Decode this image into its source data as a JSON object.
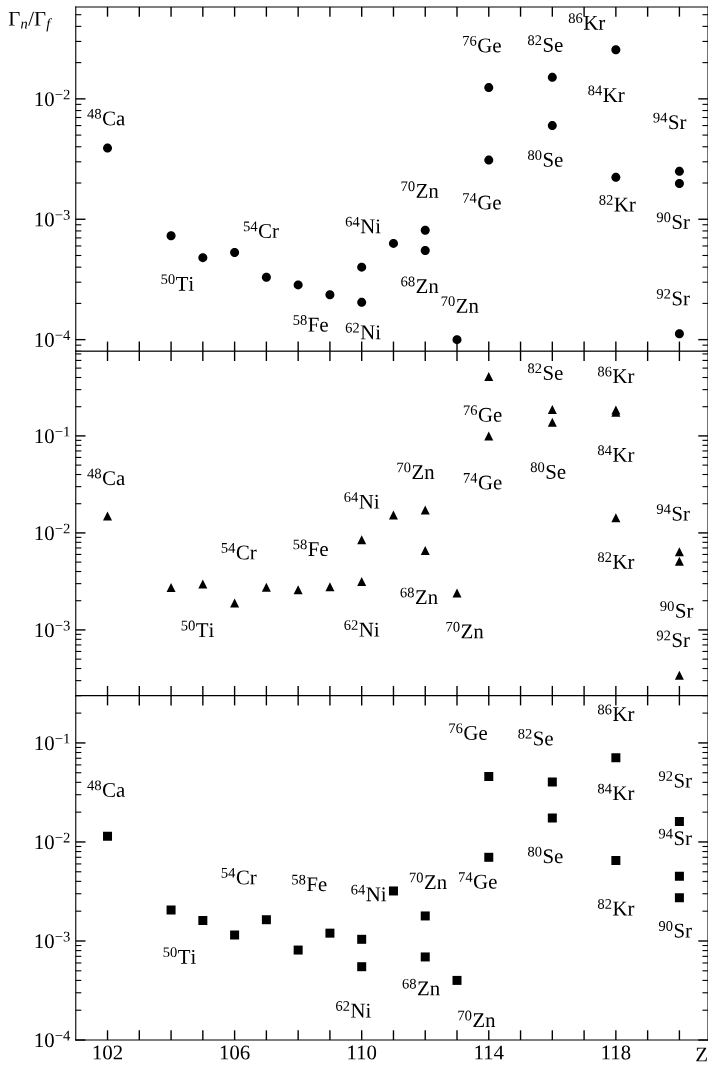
{
  "chart_data": [
    {
      "type": "scatter",
      "ylabel": "Γ$_{n}$/Γ$_{f}$",
      "log": "y",
      "marker": "circle",
      "tick_labels": "y",
      "xlim": [
        101,
        120.9
      ],
      "xticks": [
        {
          "value": 102,
          "label": null
        },
        {
          "value": 103,
          "label": null
        },
        {
          "value": 104,
          "label": null
        },
        {
          "value": 105,
          "label": null
        },
        {
          "value": 106,
          "label": null
        },
        {
          "value": 107,
          "label": null
        },
        {
          "value": 108,
          "label": null
        },
        {
          "value": 109,
          "label": null
        },
        {
          "value": 110,
          "label": null
        },
        {
          "value": 111,
          "label": null
        },
        {
          "value": 112,
          "label": null
        },
        {
          "value": 113,
          "label": null
        },
        {
          "value": 114,
          "label": null
        },
        {
          "value": 115,
          "label": null
        },
        {
          "value": 116,
          "label": null
        },
        {
          "value": 117,
          "label": null
        },
        {
          "value": 118,
          "label": null
        },
        {
          "value": 119,
          "label": null
        },
        {
          "value": 120,
          "label": null
        }
      ],
      "ylim": [
        8e-05,
        0.058
      ],
      "yticks": [
        {
          "value": 0.0001,
          "label": "10$^{−4}$"
        },
        {
          "value": 0.001,
          "label": "10$^{−3}$"
        },
        {
          "value": 0.01,
          "label": "10$^{−2}$"
        }
      ],
      "series": [
        {
          "color": "#000000",
          "x": [
            102,
            104,
            105,
            106,
            107,
            108,
            109,
            110,
            110,
            111,
            112,
            112,
            113,
            114,
            114,
            116,
            116,
            118,
            118,
            120,
            120,
            120
          ],
          "values": [
            0.0039,
            0.00073,
            0.00048,
            0.00053,
            0.00033,
            0.000285,
            0.000236,
            0.0004,
            0.000204,
            0.00063,
            0.00081,
            0.00055,
            0.0001,
            0.0124,
            0.0031,
            0.0151,
            0.006,
            0.0256,
            0.00223,
            0.0025,
            0.00198,
            0.000112
          ]
        }
      ],
      "annotations": [
        {
          "text": "$^{48}$Ca",
          "x": 102,
          "y": 0.0039
        },
        {
          "text": "$^{50}$Ti",
          "x": 104,
          "y": 0.00073
        },
        {
          "text": "$^{54}$Cr",
          "x": 106,
          "y": 0.00053
        },
        {
          "text": "$^{58}$Fe",
          "x": 108,
          "y": 0.000285
        },
        {
          "text": "$^{62}$Ni",
          "x": 110,
          "y": 0.000204
        },
        {
          "text": "$^{64}$Ni",
          "x": 110,
          "y": 0.0004
        },
        {
          "text": "$^{70}$Zn",
          "x": 112,
          "y": 0.00081
        },
        {
          "text": "$^{68}$Zn",
          "x": 112,
          "y": 0.00055
        },
        {
          "text": "$^{70}$Zn",
          "x": 113,
          "y": 0.0001
        },
        {
          "text": "$^{76}$Ge",
          "x": 114,
          "y": 0.0124
        },
        {
          "text": "$^{74}$Ge",
          "x": 114,
          "y": 0.0031
        },
        {
          "text": "$^{82}$Se",
          "x": 116,
          "y": 0.0151
        },
        {
          "text": "$^{80}$Se",
          "x": 116,
          "y": 0.006
        },
        {
          "text": "$^{86}$Kr",
          "x": 118,
          "y": 0.0256
        },
        {
          "text": "$^{84}$Kr",
          "x": 118,
          "y": 0.0256
        },
        {
          "text": "$^{82}$Kr",
          "x": 118,
          "y": 0.00223
        },
        {
          "text": "$^{94}$Sr",
          "x": 120,
          "y": 0.0025
        },
        {
          "text": "$^{90}$Sr",
          "x": 120,
          "y": 0.00198
        },
        {
          "text": "$^{92}$Sr",
          "x": 120,
          "y": 0.000112
        }
      ]
    },
    {
      "type": "scatter",
      "log": "y",
      "marker": "triangle",
      "tick_labels": "y",
      "xlim": [
        101,
        120.9
      ],
      "xticks": [
        {
          "value": 102,
          "label": null
        },
        {
          "value": 103,
          "label": null
        },
        {
          "value": 104,
          "label": null
        },
        {
          "value": 105,
          "label": null
        },
        {
          "value": 106,
          "label": null
        },
        {
          "value": 107,
          "label": null
        },
        {
          "value": 108,
          "label": null
        },
        {
          "value": 109,
          "label": null
        },
        {
          "value": 110,
          "label": null
        },
        {
          "value": 111,
          "label": null
        },
        {
          "value": 112,
          "label": null
        },
        {
          "value": 113,
          "label": null
        },
        {
          "value": 114,
          "label": null
        },
        {
          "value": 115,
          "label": null
        },
        {
          "value": 116,
          "label": null
        },
        {
          "value": 117,
          "label": null
        },
        {
          "value": 118,
          "label": null
        },
        {
          "value": 119,
          "label": null
        },
        {
          "value": 120,
          "label": null
        }
      ],
      "ylim": [
        0.00021,
        0.745
      ],
      "yticks": [
        {
          "value": 0.001,
          "label": "10$^{−3}$"
        },
        {
          "value": 0.01,
          "label": "10$^{−2}$"
        },
        {
          "value": 0.1,
          "label": "10$^{−1}$"
        }
      ],
      "series": [
        {
          "color": "#000000",
          "x": [
            102,
            104,
            105,
            106,
            107,
            108,
            109,
            110,
            110,
            111,
            112,
            112,
            113,
            114,
            114,
            116,
            116,
            118,
            118,
            118,
            120,
            120,
            120
          ],
          "values": [
            0.0149,
            0.00273,
            0.00298,
            0.00189,
            0.00276,
            0.00259,
            0.00279,
            0.0085,
            0.00315,
            0.0153,
            0.0172,
            0.0066,
            0.0024,
            0.41,
            0.1,
            0.187,
            0.138,
            0.185,
            0.175,
            0.0143,
            0.0064,
            0.0051,
            0.00034
          ]
        }
      ],
      "annotations": [
        {
          "text": "$^{48}$Ca",
          "x": 102,
          "y": 0.0149
        },
        {
          "text": "$^{50}$Ti",
          "x": 104,
          "y": 0.00273
        },
        {
          "text": "$^{54}$Cr",
          "x": 106,
          "y": 0.00189
        },
        {
          "text": "$^{58}$Fe",
          "x": 108,
          "y": 0.00259
        },
        {
          "text": "$^{64}$Ni",
          "x": 110,
          "y": 0.0085
        },
        {
          "text": "$^{62}$Ni",
          "x": 110,
          "y": 0.00315
        },
        {
          "text": "$^{70}$Zn",
          "x": 112,
          "y": 0.0172
        },
        {
          "text": "$^{68}$Zn",
          "x": 112,
          "y": 0.0066
        },
        {
          "text": "$^{70}$Zn",
          "x": 113,
          "y": 0.0024
        },
        {
          "text": "$^{76}$Ge",
          "x": 114,
          "y": 0.41
        },
        {
          "text": "$^{74}$Ge",
          "x": 114,
          "y": 0.1
        },
        {
          "text": "$^{82}$Se",
          "x": 116,
          "y": 0.187
        },
        {
          "text": "$^{80}$Se",
          "x": 116,
          "y": 0.138
        },
        {
          "text": "$^{86}$Kr",
          "x": 118,
          "y": 0.185
        },
        {
          "text": "$^{84}$Kr",
          "x": 118,
          "y": 0.175
        },
        {
          "text": "$^{82}$Kr",
          "x": 118,
          "y": 0.0143
        },
        {
          "text": "$^{94}$Sr",
          "x": 120,
          "y": 0.0064
        },
        {
          "text": "$^{90}$Sr",
          "x": 120,
          "y": 0.0051
        },
        {
          "text": "$^{92}$Sr",
          "x": 120,
          "y": 0.00034
        }
      ]
    },
    {
      "type": "scatter",
      "log": "y",
      "marker": "square",
      "xlabel": "Z",
      "xlim": [
        101,
        120.9
      ],
      "xticks": [
        102,
        {
          "value": 103,
          "label": null
        },
        {
          "value": 104,
          "label": null
        },
        {
          "value": 105,
          "label": null
        },
        106,
        {
          "value": 107,
          "label": null
        },
        {
          "value": 108,
          "label": null
        },
        {
          "value": 109,
          "label": null
        },
        110,
        {
          "value": 111,
          "label": null
        },
        {
          "value": 112,
          "label": null
        },
        {
          "value": 113,
          "label": null
        },
        114,
        {
          "value": 115,
          "label": null
        },
        {
          "value": 116,
          "label": null
        },
        {
          "value": 117,
          "label": null
        },
        118,
        {
          "value": 119,
          "label": null
        },
        {
          "value": 120,
          "label": null
        }
      ],
      "ylim": [
        0.0001,
        0.3
      ],
      "yticks": [
        {
          "value": 0.0001,
          "label": "10$^{−4}$"
        },
        {
          "value": 0.001,
          "label": "10$^{−3}$"
        },
        {
          "value": 0.01,
          "label": "10$^{−2}$"
        },
        {
          "value": 0.1,
          "label": "10$^{−1}$"
        }
      ],
      "series": [
        {
          "color": "#000000",
          "x": [
            102,
            104,
            105,
            106,
            107,
            108,
            109,
            110,
            110,
            111,
            112,
            112,
            113,
            114,
            114,
            116,
            116,
            118,
            118,
            120,
            120,
            120
          ],
          "values": [
            0.0114,
            0.00205,
            0.00161,
            0.00115,
            0.00164,
            0.00081,
            0.0012,
            0.00104,
            0.00055,
            0.0032,
            0.00179,
            0.00069,
            0.0004,
            0.0458,
            0.007,
            0.0403,
            0.0175,
            0.071,
            0.0065,
            0.0161,
            0.0045,
            0.00273
          ]
        }
      ],
      "annotations": [
        {
          "text": "$^{48}$Ca",
          "x": 102,
          "y": 0.0114
        },
        {
          "text": "$^{50}$Ti",
          "x": 104,
          "y": 0.00205
        },
        {
          "text": "$^{54}$Cr",
          "x": 106,
          "y": 0.00115
        },
        {
          "text": "$^{58}$Fe",
          "x": 108,
          "y": 0.00081
        },
        {
          "text": "$^{64}$Ni",
          "x": 110,
          "y": 0.00104
        },
        {
          "text": "$^{70}$Zn",
          "x": 112,
          "y": 0.00179
        },
        {
          "text": "$^{62}$Ni",
          "x": 110,
          "y": 0.00055
        },
        {
          "text": "$^{68}$Zn",
          "x": 112,
          "y": 0.00069
        },
        {
          "text": "$^{70}$Zn",
          "x": 113,
          "y": 0.0004
        },
        {
          "text": "$^{76}$Ge",
          "x": 114,
          "y": 0.0458
        },
        {
          "text": "$^{74}$Ge",
          "x": 114,
          "y": 0.007
        },
        {
          "text": "$^{82}$Se",
          "x": 116,
          "y": 0.0403
        },
        {
          "text": "$^{80}$Se",
          "x": 116,
          "y": 0.0175
        },
        {
          "text": "$^{86}$Kr",
          "x": 118,
          "y": 0.071
        },
        {
          "text": "$^{84}$Kr",
          "x": 118,
          "y": 0.071
        },
        {
          "text": "$^{82}$Kr",
          "x": 118,
          "y": 0.0065
        },
        {
          "text": "$^{92}$Sr",
          "x": 120,
          "y": 0.0161
        },
        {
          "text": "$^{94}$Sr",
          "x": 120,
          "y": 0.0045
        },
        {
          "text": "$^{90}$Sr",
          "x": 120,
          "y": 0.00273
        }
      ]
    }
  ]
}
